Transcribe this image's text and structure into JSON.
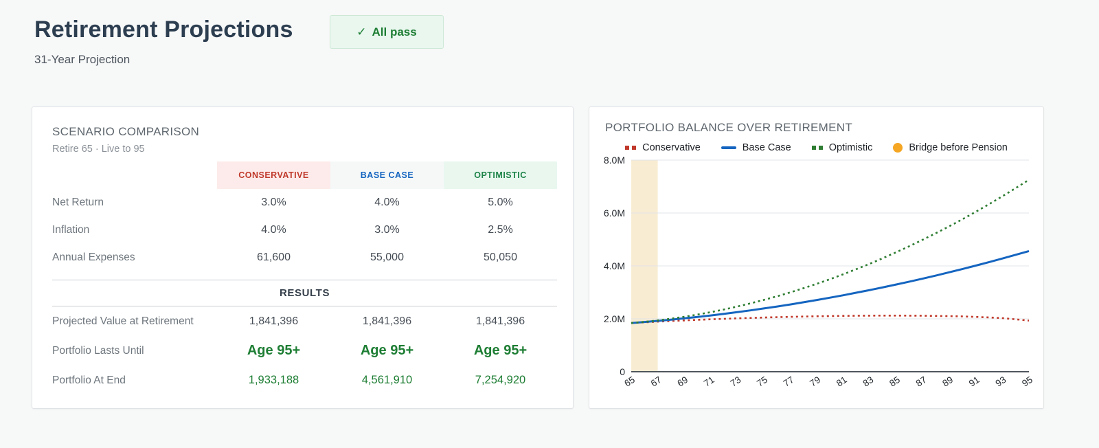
{
  "page": {
    "title": "Retirement Projections",
    "subtitle": "31-Year Projection",
    "badge_icon": "✓",
    "badge_label": "All pass"
  },
  "scenario_card": {
    "title": "SCENARIO COMPARISON",
    "subtitle": "Retire 65 · Live to 95",
    "columns": [
      {
        "label": "CONSERVATIVE",
        "color": "#c0392b",
        "bg": "#fcebea"
      },
      {
        "label": "BASE CASE",
        "color": "#1565c0",
        "bg": "#f6f8f8"
      },
      {
        "label": "OPTIMISTIC",
        "color": "#1e8449",
        "bg": "#e9f7ef"
      }
    ],
    "input_rows": [
      {
        "label": "Net Return",
        "values": [
          "3.0%",
          "4.0%",
          "5.0%"
        ]
      },
      {
        "label": "Inflation",
        "values": [
          "4.0%",
          "3.0%",
          "2.5%"
        ]
      },
      {
        "label": "Annual Expenses",
        "values": [
          "61,600",
          "55,000",
          "50,050"
        ]
      }
    ],
    "results_heading": "RESULTS",
    "result_rows": [
      {
        "label": "Projected Value at Retirement",
        "style": "plain",
        "values": [
          "1,841,396",
          "1,841,396",
          "1,841,396"
        ]
      },
      {
        "label": "Portfolio Lasts Until",
        "style": "big",
        "values": [
          "Age 95+",
          "Age 95+",
          "Age 95+"
        ]
      },
      {
        "label": "Portfolio At End",
        "style": "green",
        "values": [
          "1,933,188",
          "4,561,910",
          "7,254,920"
        ]
      }
    ]
  },
  "chart_card": {
    "title": "PORTFOLIO BALANCE OVER RETIREMENT"
  },
  "chart_data": {
    "type": "line",
    "title": "PORTFOLIO BALANCE OVER RETIREMENT",
    "grid": true,
    "legend_position": "top",
    "x": [
      65,
      66,
      67,
      68,
      69,
      70,
      71,
      72,
      73,
      74,
      75,
      76,
      77,
      78,
      79,
      80,
      81,
      82,
      83,
      84,
      85,
      86,
      87,
      88,
      89,
      90,
      91,
      92,
      93,
      94,
      95
    ],
    "xticks": [
      65,
      67,
      69,
      71,
      73,
      75,
      77,
      79,
      81,
      83,
      85,
      87,
      89,
      91,
      93,
      95
    ],
    "ylim_millions": [
      0,
      8
    ],
    "yticks": [
      {
        "v_m": 0,
        "label": "0"
      },
      {
        "v_m": 2,
        "label": "2.0M"
      },
      {
        "v_m": 4,
        "label": "4.0M"
      },
      {
        "v_m": 6,
        "label": "6.0M"
      },
      {
        "v_m": 8,
        "label": "8.0M"
      }
    ],
    "band": {
      "label": "Bridge before Pension",
      "from": 65,
      "to": 67,
      "fill": "#f8ecd2",
      "legend_color": "#f5a623"
    },
    "series": [
      {
        "name": "Conservative",
        "color": "#c0392b",
        "dash": "dotted",
        "values_millions": [
          1.841,
          1.868,
          1.893,
          1.917,
          1.94,
          1.961,
          1.981,
          2.0,
          2.018,
          2.034,
          2.049,
          2.063,
          2.075,
          2.086,
          2.096,
          2.104,
          2.111,
          2.116,
          2.12,
          2.122,
          2.122,
          2.12,
          2.116,
          2.11,
          2.101,
          2.09,
          2.073,
          2.052,
          2.026,
          1.983,
          1.933
        ]
      },
      {
        "name": "Base Case",
        "color": "#1565c0",
        "dash": "solid",
        "values_millions": [
          1.841,
          1.88,
          1.922,
          1.969,
          2.018,
          2.071,
          2.128,
          2.189,
          2.253,
          2.32,
          2.391,
          2.466,
          2.544,
          2.626,
          2.711,
          2.8,
          2.892,
          2.989,
          3.088,
          3.191,
          3.298,
          3.409,
          3.522,
          3.64,
          3.761,
          3.885,
          4.014,
          4.145,
          4.281,
          4.42,
          4.562
        ]
      },
      {
        "name": "Optimistic",
        "color": "#2e7d32",
        "dash": "dotted",
        "values_millions": [
          1.841,
          1.886,
          1.941,
          2.005,
          2.078,
          2.161,
          2.253,
          2.354,
          2.465,
          2.585,
          2.714,
          2.853,
          3.001,
          3.158,
          3.324,
          3.5,
          3.685,
          3.88,
          4.083,
          4.296,
          4.519,
          4.75,
          4.991,
          5.242,
          5.501,
          5.77,
          6.049,
          6.336,
          6.633,
          6.939,
          7.255
        ]
      }
    ],
    "legend": [
      {
        "label": "Conservative",
        "marker": "dashes",
        "color": "#c0392b"
      },
      {
        "label": "Base Case",
        "marker": "line",
        "color": "#1565c0"
      },
      {
        "label": "Optimistic",
        "marker": "dashes",
        "color": "#2e7d32"
      },
      {
        "label": "Bridge before Pension",
        "marker": "circle",
        "color": "#f5a623"
      }
    ]
  }
}
